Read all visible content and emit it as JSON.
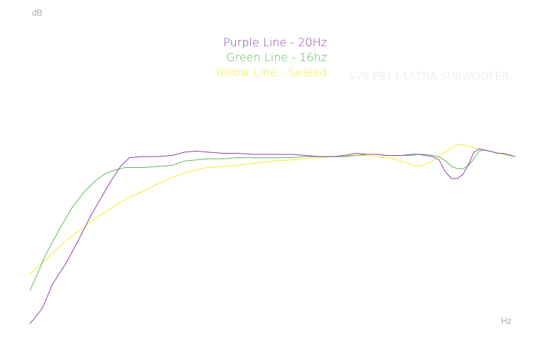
{
  "chart_data": {
    "type": "line",
    "title": "",
    "watermark": "SVS PB13-ULTRA SUBWOOFER",
    "xlabel": "Hz",
    "ylabel": "dB",
    "grid": false,
    "legend_position": "top-center",
    "x_scale": "log",
    "x_range_hz": [
      10,
      200
    ],
    "series": [
      {
        "name": "Purple Line - 20Hz",
        "color": "#8a3fb0",
        "x": [
          10,
          10.3,
          10.8,
          11.5,
          12.5,
          13.5,
          14.5,
          15.5,
          16.5,
          17.5,
          18.5,
          20,
          22,
          24,
          26,
          28,
          30,
          33,
          36,
          40,
          45,
          50,
          55,
          60,
          65,
          70,
          75,
          80,
          85,
          90,
          95,
          100,
          105,
          110,
          115,
          120,
          125,
          130,
          135,
          140,
          145,
          150,
          155,
          160,
          165,
          170,
          175,
          180,
          185,
          190,
          195,
          200
        ],
        "y": [
          10,
          10.5,
          11.4,
          13.6,
          15.5,
          17.6,
          19.7,
          21.4,
          23.0,
          24.3,
          25.1,
          25.2,
          25.2,
          25.3,
          25.6,
          25.7,
          25.6,
          25.5,
          25.5,
          25.4,
          25.4,
          25.4,
          25.3,
          25.2,
          25.2,
          25.3,
          25.5,
          25.4,
          25.4,
          25.3,
          25.3,
          25.3,
          25.4,
          25.4,
          25.3,
          25.2,
          24.9,
          23.8,
          23.2,
          23.2,
          23.6,
          24.5,
          25.6,
          25.9,
          25.8,
          25.7,
          25.6,
          25.5,
          25.5,
          25.4,
          25.3,
          25.2
        ]
      },
      {
        "name": "Green Line - 16hz",
        "color": "#5cb85c",
        "x": [
          10,
          10.5,
          11,
          12,
          13,
          14,
          15,
          16,
          17,
          18,
          20,
          22,
          24,
          26,
          28,
          30,
          33,
          36,
          40,
          45,
          50,
          55,
          60,
          65,
          70,
          75,
          80,
          85,
          90,
          95,
          100,
          105,
          110,
          115,
          120,
          125,
          130,
          135,
          140,
          145,
          150,
          155,
          160,
          165,
          170,
          175,
          180,
          185,
          190,
          195,
          200
        ],
        "y": [
          13,
          14.6,
          16.2,
          18.6,
          20.6,
          22.0,
          23.0,
          23.7,
          24.0,
          24.2,
          24.2,
          24.3,
          24.4,
          24.8,
          24.9,
          25.0,
          25.0,
          25.1,
          25.1,
          25.1,
          25.1,
          25.2,
          25.2,
          25.2,
          25.2,
          25.3,
          25.4,
          25.4,
          25.3,
          25.3,
          25.3,
          25.3,
          25.4,
          25.4,
          25.3,
          25.2,
          24.8,
          24.3,
          24.1,
          24.1,
          24.4,
          25.0,
          25.7,
          25.8,
          25.7,
          25.6,
          25.5,
          25.5,
          25.4,
          25.3,
          25.2
        ]
      },
      {
        "name": "Yellow Line - Sealed",
        "color": "#f2ee2a",
        "x": [
          10,
          11,
          12,
          13,
          14,
          15,
          16,
          17,
          18,
          20,
          22,
          24,
          26,
          28,
          30,
          33,
          36,
          40,
          45,
          50,
          55,
          60,
          65,
          70,
          75,
          80,
          85,
          90,
          95,
          100,
          105,
          110,
          115,
          120,
          125,
          130,
          135,
          140,
          145,
          150,
          155,
          160,
          165,
          170,
          175,
          180,
          185,
          190,
          195,
          200
        ],
        "y": [
          14.5,
          15.8,
          17.0,
          18.0,
          18.8,
          19.6,
          20.2,
          20.8,
          21.3,
          22.0,
          22.7,
          23.3,
          23.7,
          24.0,
          24.2,
          24.3,
          24.4,
          24.6,
          24.8,
          24.9,
          25.0,
          25.1,
          25.2,
          25.3,
          25.3,
          25.3,
          25.2,
          25.1,
          25.0,
          24.7,
          24.5,
          24.3,
          24.5,
          24.8,
          25.2,
          25.6,
          26.0,
          26.3,
          26.3,
          26.1,
          26.0,
          25.9,
          25.8,
          25.7,
          25.6,
          25.5,
          25.4,
          25.3,
          25.3,
          25.2
        ]
      }
    ]
  }
}
